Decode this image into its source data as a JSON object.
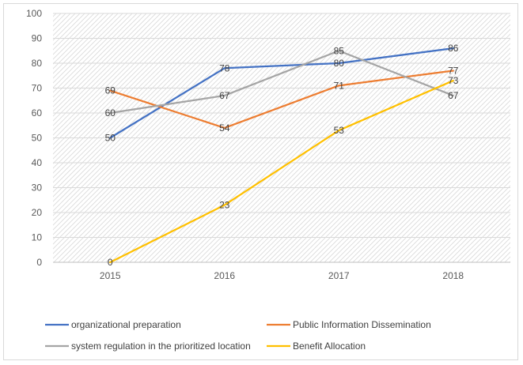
{
  "chart_data": {
    "type": "line",
    "categories": [
      "2015",
      "2016",
      "2017",
      "2018"
    ],
    "ylim": [
      0,
      100
    ],
    "yticks": [
      0,
      10,
      20,
      30,
      40,
      50,
      60,
      70,
      80,
      90,
      100
    ],
    "grid": true,
    "legend_position": "bottom",
    "series": [
      {
        "name": "organizational preparation",
        "values": [
          50,
          78,
          80,
          86
        ],
        "color": "#4472c4"
      },
      {
        "name": "Public Information Dissemination",
        "values": [
          69,
          54,
          71,
          77
        ],
        "color": "#ed7d31"
      },
      {
        "name": "system regulation in the prioritized location",
        "values": [
          60,
          67,
          85,
          67
        ],
        "color": "#a5a5a5"
      },
      {
        "name": "Benefit Allocation",
        "values": [
          0,
          23,
          53,
          73
        ],
        "color": "#ffc000"
      }
    ]
  }
}
